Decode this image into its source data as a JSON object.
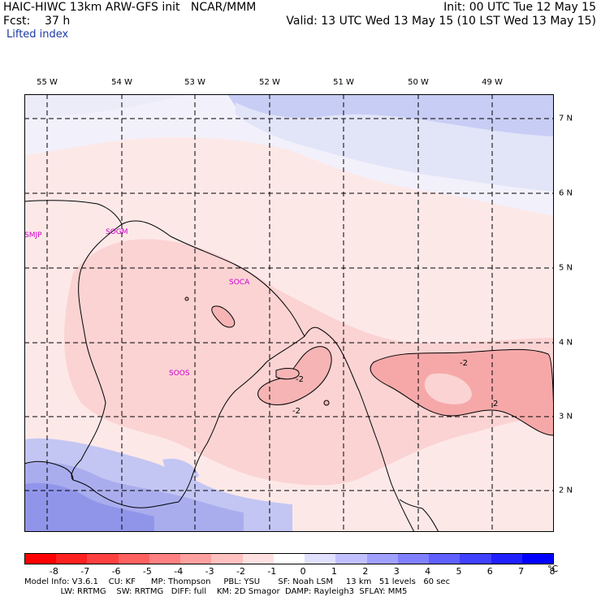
{
  "header": {
    "title": "HAIC-HIWC 13km ARW-GFS init   NCAR/MMM",
    "fcst": "Fcst:    37 h",
    "init": "Init: 00 UTC Tue 12 May 15",
    "valid": "Valid: 13 UTC Wed 13 May 15 (10 LST Wed 13 May 15)",
    "field": "Lifted index"
  },
  "map": {
    "lon_labels": [
      "55 W",
      "54 W",
      "53 W",
      "52 W",
      "51 W",
      "50 W",
      "49 W"
    ],
    "lat_labels": [
      "7 N",
      "6 N",
      "5 N",
      "4 N",
      "3 N",
      "2 N"
    ],
    "stations": [
      "SMJP",
      "SOGM",
      "SOCA",
      "SOOS"
    ],
    "contour_labels": [
      "2",
      "-2",
      "-2",
      "-2"
    ],
    "station_color": "#cc00cc"
  },
  "colorbar": {
    "colors": [
      "#ff0000",
      "#ff2020",
      "#ff4040",
      "#ff6060",
      "#ff8080",
      "#ffa0a0",
      "#ffc0c0",
      "#ffe0e0",
      "#ffffff",
      "#e0e0ff",
      "#c0c0ff",
      "#a0a0ff",
      "#8080ff",
      "#6060ff",
      "#4040ff",
      "#2020ff",
      "#0000ff"
    ],
    "ticks": [
      "-8",
      "-7",
      "-6",
      "-5",
      "-4",
      "-3",
      "-2",
      "-1",
      "0",
      "1",
      "2",
      "3",
      "4",
      "5",
      "6",
      "7",
      "8"
    ],
    "unit": "°C"
  },
  "model_info": {
    "line1": "Model Info: V3.6.1    CU: KF      MP: Thompson     PBL: YSU       SF: Noah LSM     13 km   51 levels   60 sec",
    "line2": "              LW: RRTMG    SW: RRTMG   DIFF: full    KM: 2D Smagor  DAMP: Rayleigh3  SFLAY: MM5"
  }
}
